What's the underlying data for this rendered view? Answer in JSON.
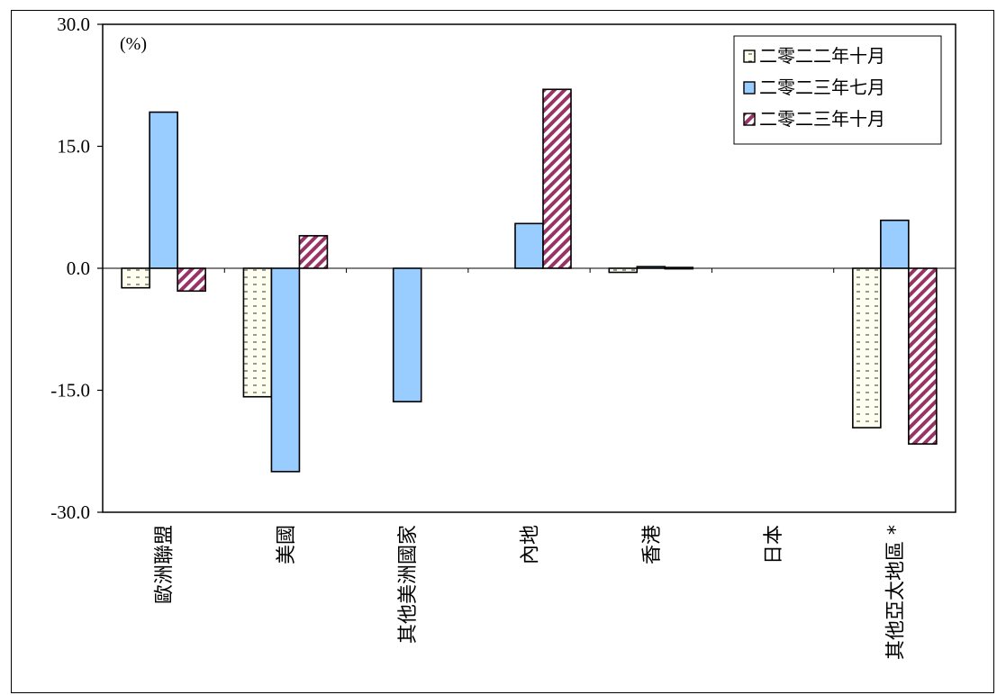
{
  "chart_data": {
    "type": "bar",
    "unit_label": "(%)",
    "ylim": [
      -30,
      30
    ],
    "yticks": [
      "30.0",
      "15.0",
      "0.0",
      "-15.0",
      "-30.0"
    ],
    "ytick_values": [
      30,
      15,
      0,
      -15,
      -30
    ],
    "categories": [
      "歐洲聯盟",
      "美國",
      "其他美洲國家",
      "內地",
      "香港",
      "日本",
      "其他亞太地區 *"
    ],
    "series": [
      {
        "name": "二零二二年十月",
        "pattern": "dashes",
        "color": "#fffff0",
        "values": [
          -2.4,
          -15.8,
          null,
          null,
          -0.5,
          null,
          -19.6
        ]
      },
      {
        "name": "二零二三年七月",
        "pattern": "solid",
        "color": "#99ccff",
        "values": [
          19.2,
          -25.0,
          -16.4,
          5.5,
          0.2,
          null,
          5.9
        ]
      },
      {
        "name": "二零二三年十月",
        "pattern": "diagonal",
        "color": "#993366",
        "values": [
          -2.8,
          4.0,
          null,
          22.0,
          0.1,
          null,
          -21.6
        ]
      }
    ],
    "legend_position": "top-right",
    "grid": false
  }
}
